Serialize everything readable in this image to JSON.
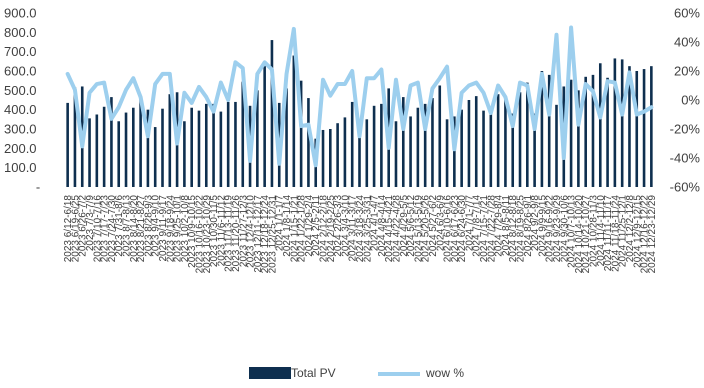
{
  "chart_data": {
    "type": "bar",
    "title": "",
    "xlabel": "",
    "ylabel": "",
    "ylim": [
      0,
      900
    ],
    "ylim_right": [
      -60,
      60
    ],
    "y_ticks": [
      "-",
      "100.0",
      "200.0",
      "300.0",
      "400.0",
      "500.0",
      "600.0",
      "700.0",
      "800.0",
      "900.0"
    ],
    "y2_ticks": [
      "-60%",
      "-40%",
      "-20%",
      "0%",
      "20%",
      "40%",
      "60%"
    ],
    "grid": false,
    "legend_position": "bottom",
    "categories": [
      "2023 6/12-6/18",
      "2023 6/19-6/25",
      "2023 6/26-7/2",
      "2023 7/3-7/9",
      "2023 7/10-7/16",
      "2023 7/17-7/23",
      "2023 7/24-7/30",
      "2023 7/31-8/6",
      "2023 8/7-8/13",
      "2023 8/14-8/20",
      "2023 8/21-8/27",
      "2023 8/28-9/3",
      "2023 9/4-9/10",
      "2023 9/11-9/17",
      "2023 9/18-9/24",
      "2023 9/25-10/1",
      "2023 10/2-10/8",
      "2023 10/9-10/15",
      "2023 10/16-10/22",
      "2023 10/23-10/29",
      "2023 10/30-11/5",
      "2023 11/6-11/12",
      "2023 11/13-11/19",
      "2023 11/20-11/26",
      "2023 11/27-12/3",
      "2023 12/4-12/10",
      "2023 12/11-12/17",
      "2023 12/18-12/24",
      "2023 12/25-12/31",
      "2024 1/1-1/7",
      "2024 1/8-1/14",
      "2024 1/15-1/21",
      "2024 1/22-1/28",
      "2024 1/29-2/4",
      "2024 2/5-2/11",
      "2024 2/12-2/18",
      "2024 2/19-2/25",
      "2024 2/26-3/3",
      "2024 3/4-3/10",
      "2024 3/11-3/17",
      "2024 3/18-3/24",
      "2024 3/25-3/31",
      "2024 4/1-4/7",
      "2024 4/8-4/14",
      "2024 4/15-4/21",
      "2024 4/22-4/28",
      "2024 4/29-5/5",
      "2024 5/6-5/12",
      "2024 5/13-5/19",
      "2024 5/20-5/26",
      "2024 5/27-6/2",
      "2024 6/3-6/9",
      "2024 6/10-6/16",
      "2024 6/17-6/23",
      "2024 6/24-6/30",
      "2024 7/1-7/7",
      "2024 7/8-7/14",
      "2024 7/15-7/21",
      "2024 7/22-7/28",
      "2024 7/29-8/4",
      "2024 8/5-8/11",
      "2024 8/12-8/18",
      "2024 8/19-8/25",
      "2024 8/26-9/1",
      "2024 9/2-9/8",
      "2024 9/9-9/15",
      "2024 9/16-9/22",
      "2024 9/23-9/29",
      "2024 9/30-10/6",
      "2024 10/7-10/13",
      "2024 10/14-10/20",
      "2024 10/21-10/27",
      "2024 10/28-11/3",
      "2024 11/4-11/10",
      "2024 11/11-11/17",
      "2024 11/18-11/24",
      "2024 11/25-12/1",
      "2024 12/2-12/8",
      "2024 12/9-12/15",
      "2024 12/16-12/22",
      "2024 12/23-12/29"
    ],
    "series": [
      {
        "name": "Total PV",
        "type": "bar",
        "color": "#0e2f4f",
        "axis": "left",
        "values": [
          435,
          515,
          520,
          355,
          375,
          415,
          465,
          340,
          385,
          410,
          470,
          400,
          310,
          405,
          480,
          490,
          340,
          410,
          395,
          430,
          430,
          390,
          440,
          440,
          545,
          420,
          500,
          625,
          760,
          435,
          510,
          680,
          550,
          460,
          250,
          295,
          300,
          330,
          360,
          440,
          320,
          350,
          420,
          430,
          510,
          340,
          465,
          365,
          410,
          430,
          460,
          525,
          350,
          365,
          400,
          450,
          470,
          395,
          410,
          480,
          470,
          380,
          490,
          540,
          380,
          600,
          580,
          425,
          520,
          555,
          500,
          570,
          580,
          640,
          565,
          665,
          660,
          625,
          600,
          610,
          625
        ]
      },
      {
        "name": "wow %",
        "type": "line",
        "color": "#9dcfee",
        "axis": "right",
        "values": [
          18,
          7,
          -32,
          5,
          11,
          12,
          -13,
          -5,
          7,
          15,
          2,
          -25,
          11,
          18,
          18,
          -30,
          5,
          -2,
          9,
          2,
          -8,
          12,
          0,
          26,
          22,
          -42,
          18,
          26,
          21,
          -44,
          18,
          49,
          -18,
          -17,
          -45,
          14,
          3,
          11,
          11,
          20,
          -25,
          15,
          15,
          21,
          -33,
          14,
          -20,
          10,
          12,
          -20,
          8,
          15,
          23,
          -34,
          5,
          10,
          12,
          5,
          -9,
          10,
          2,
          -18,
          12,
          10,
          -20,
          18,
          -10,
          45,
          -40,
          50,
          -17,
          11,
          6,
          -12,
          13,
          12,
          -10,
          19,
          -10,
          -8,
          -5
        ]
      }
    ]
  }
}
